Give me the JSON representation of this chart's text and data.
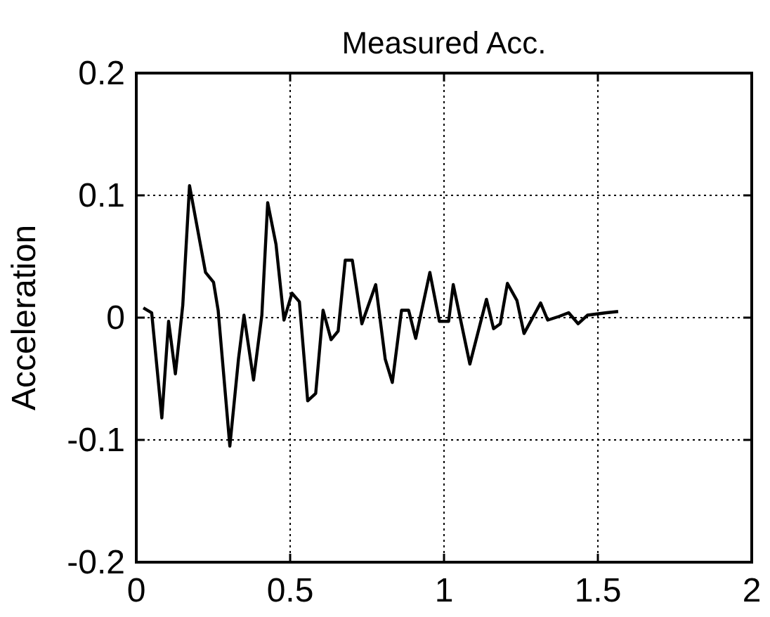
{
  "chart_data": {
    "type": "line",
    "title": "Measured Acc.",
    "ylabel": "Acceleration",
    "xlim": [
      0,
      2
    ],
    "xticks": [
      0,
      0.5,
      1,
      1.5,
      2
    ],
    "ylim": [
      -0.2,
      0.2
    ],
    "yticks": [
      -0.2,
      -0.1,
      0,
      0.1,
      0.2
    ],
    "grid": true,
    "line_style": "solid",
    "marker": "none",
    "series": [
      {
        "color": "#000000",
        "x": [
          0.023,
          0.05,
          0.083,
          0.105,
          0.127,
          0.151,
          0.173,
          0.225,
          0.251,
          0.266,
          0.304,
          0.332,
          0.35,
          0.381,
          0.408,
          0.427,
          0.454,
          0.48,
          0.506,
          0.53,
          0.557,
          0.583,
          0.607,
          0.633,
          0.656,
          0.679,
          0.702,
          0.733,
          0.778,
          0.809,
          0.832,
          0.862,
          0.885,
          0.908,
          0.954,
          0.985,
          1.015,
          1.03,
          1.084,
          1.138,
          1.161,
          1.183,
          1.206,
          1.237,
          1.26,
          1.314,
          1.337,
          1.374,
          1.405,
          1.436,
          1.466,
          1.528,
          1.566
        ],
        "values": [
          0.008,
          0.004,
          -0.082,
          -0.003,
          -0.046,
          0.01,
          0.108,
          0.037,
          0.029,
          0.006,
          -0.105,
          -0.034,
          0.002,
          -0.051,
          0.002,
          0.094,
          0.06,
          -0.002,
          0.02,
          0.013,
          -0.068,
          -0.062,
          0.006,
          -0.018,
          -0.011,
          0.047,
          0.047,
          -0.005,
          0.027,
          -0.034,
          -0.053,
          0.006,
          0.006,
          -0.017,
          0.037,
          -0.003,
          -0.003,
          0.027,
          -0.038,
          0.015,
          -0.009,
          -0.005,
          0.028,
          0.014,
          -0.013,
          0.012,
          -0.002,
          0.001,
          0.004,
          -0.005,
          0.002,
          0.004,
          0.005
        ]
      }
    ]
  }
}
